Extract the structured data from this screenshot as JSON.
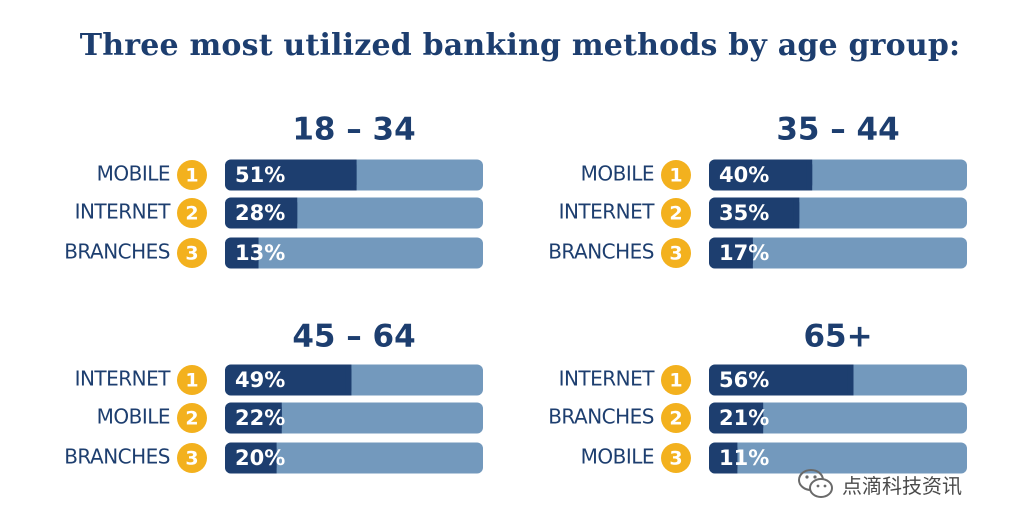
{
  "title": "Three most utilized banking methods by age group:",
  "colors": {
    "title": "#1d3e6f",
    "bar_fill": "#1d3e6f",
    "bar_track": "#7399bd",
    "badge": "#f3b11e",
    "label": "#1d3e6f"
  },
  "watermark": {
    "text": "点滴科技资讯",
    "icon": "wechat-icon"
  },
  "chart_data": [
    {
      "type": "bar",
      "title": "18 – 34",
      "categories": [
        "MOBILE",
        "INTERNET",
        "BRANCHES"
      ],
      "ranks": [
        "1",
        "2",
        "3"
      ],
      "values": [
        51,
        28,
        13
      ],
      "value_labels": [
        "51%",
        "28%",
        "13%"
      ],
      "xlim": [
        0,
        100
      ]
    },
    {
      "type": "bar",
      "title": "35 – 44",
      "categories": [
        "MOBILE",
        "INTERNET",
        "BRANCHES"
      ],
      "ranks": [
        "1",
        "2",
        "3"
      ],
      "values": [
        40,
        35,
        17
      ],
      "value_labels": [
        "40%",
        "35%",
        "17%"
      ],
      "xlim": [
        0,
        100
      ]
    },
    {
      "type": "bar",
      "title": "45 – 64",
      "categories": [
        "INTERNET",
        "MOBILE",
        "BRANCHES"
      ],
      "ranks": [
        "1",
        "2",
        "3"
      ],
      "values": [
        49,
        22,
        20
      ],
      "value_labels": [
        "49%",
        "22%",
        "20%"
      ],
      "xlim": [
        0,
        100
      ]
    },
    {
      "type": "bar",
      "title": "65+",
      "categories": [
        "INTERNET",
        "BRANCHES",
        "MOBILE"
      ],
      "ranks": [
        "1",
        "2",
        "3"
      ],
      "values": [
        56,
        21,
        11
      ],
      "value_labels": [
        "56%",
        "21%",
        "11%"
      ],
      "xlim": [
        0,
        100
      ]
    }
  ]
}
